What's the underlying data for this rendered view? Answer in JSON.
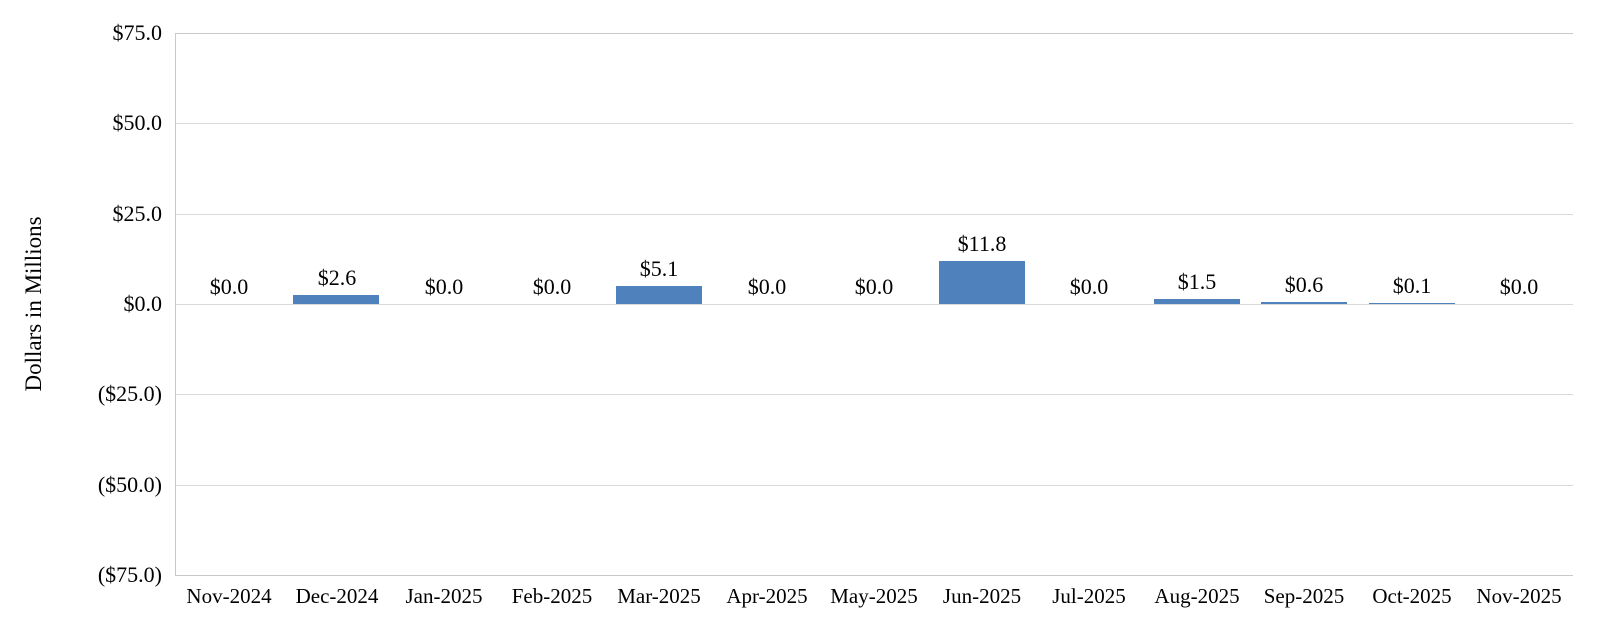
{
  "chart_data": {
    "type": "bar",
    "title": "",
    "xlabel": "",
    "ylabel": "Dollars in Millions",
    "categories": [
      "Nov-2024",
      "Dec-2024",
      "Jan-2025",
      "Feb-2025",
      "Mar-2025",
      "Apr-2025",
      "May-2025",
      "Jun-2025",
      "Jul-2025",
      "Aug-2025",
      "Sep-2025",
      "Oct-2025",
      "Nov-2025"
    ],
    "values": [
      0.0,
      2.6,
      0.0,
      0.0,
      5.1,
      0.0,
      0.0,
      11.8,
      0.0,
      1.5,
      0.6,
      0.1,
      0.0
    ],
    "data_labels": [
      "$0.0",
      "$2.6",
      "$0.0",
      "$0.0",
      "$5.1",
      "$0.0",
      "$0.0",
      "$11.8",
      "$0.0",
      "$1.5",
      "$0.6",
      "$0.1",
      "$0.0"
    ],
    "y_ticks": [
      {
        "value": 75,
        "label": "$75.0"
      },
      {
        "value": 50,
        "label": "$50.0"
      },
      {
        "value": 25,
        "label": "$25.0"
      },
      {
        "value": 0,
        "label": "$0.0"
      },
      {
        "value": -25,
        "label": "($25.0)"
      },
      {
        "value": -50,
        "label": "($50.0)"
      },
      {
        "value": -75,
        "label": "($75.0)"
      }
    ],
    "ylim": [
      -75,
      75
    ],
    "grid": true,
    "legend": "none",
    "bar_color": "#4F81BD",
    "gridline_color": "#D9D9D9",
    "axis_line_color": "#C9C9C9",
    "text_color": "#000000"
  }
}
